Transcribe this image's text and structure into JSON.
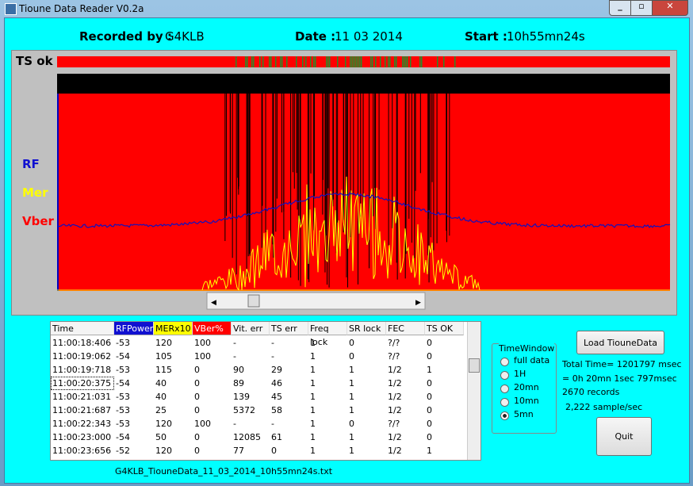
{
  "window": {
    "title": "Tioune Data Reader V0.2a"
  },
  "header": {
    "recorded_label": "Recorded by :",
    "recorded_value": "G4KLB",
    "date_label": "Date :",
    "date_value": "11 03 2014",
    "start_label": "Start :",
    "start_value": "10h55mn24s"
  },
  "plot": {
    "ts_label": "TS ok",
    "rf_label": "RF",
    "mer_label": "Mer",
    "vber_label": "Vber"
  },
  "table": {
    "columns": [
      "Time",
      "RFPower",
      "MERx10",
      "VBer%",
      "Vit. err",
      "TS err",
      "Freq lock",
      "SR lock",
      "FEC",
      "TS OK"
    ],
    "rows": [
      [
        "11:00:18:406",
        "-53",
        "120",
        "100",
        "-",
        "-",
        "1",
        "0",
        "?/?",
        "0"
      ],
      [
        "11:00:19:062",
        "-54",
        "105",
        "100",
        "-",
        "-",
        "1",
        "0",
        "?/?",
        "0"
      ],
      [
        "11:00:19:718",
        "-53",
        "115",
        "0",
        "90",
        "29",
        "1",
        "1",
        "1/2",
        "1"
      ],
      [
        "11:00:20:375",
        "-54",
        "40",
        "0",
        "89",
        "46",
        "1",
        "1",
        "1/2",
        "0"
      ],
      [
        "11:00:21:031",
        "-53",
        "40",
        "0",
        "139",
        "45",
        "1",
        "1",
        "1/2",
        "0"
      ],
      [
        "11:00:21:687",
        "-53",
        "25",
        "0",
        "5372",
        "58",
        "1",
        "1",
        "1/2",
        "0"
      ],
      [
        "11:00:22:343",
        "-53",
        "120",
        "100",
        "-",
        "-",
        "1",
        "0",
        "?/?",
        "0"
      ],
      [
        "11:00:23:000",
        "-54",
        "50",
        "0",
        "12085",
        "61",
        "1",
        "1",
        "1/2",
        "0"
      ],
      [
        "11:00:23:656",
        "-52",
        "120",
        "0",
        "77",
        "0",
        "1",
        "1",
        "1/2",
        "1"
      ]
    ]
  },
  "file": "G4KLB_TiouneData_11_03_2014_10h55mn24s.txt",
  "time_window": {
    "title": "TimeWindow",
    "options": [
      "full data",
      "1H",
      "20mn",
      "10mn",
      "5mn"
    ]
  },
  "load_button": "Load TiouneData",
  "info": [
    "Total Time= 1201797 msec",
    "= 0h 20mn 1sec 797msec",
    "2670 records",
    "2,222 sample/sec"
  ],
  "quit_button": "Quit"
}
